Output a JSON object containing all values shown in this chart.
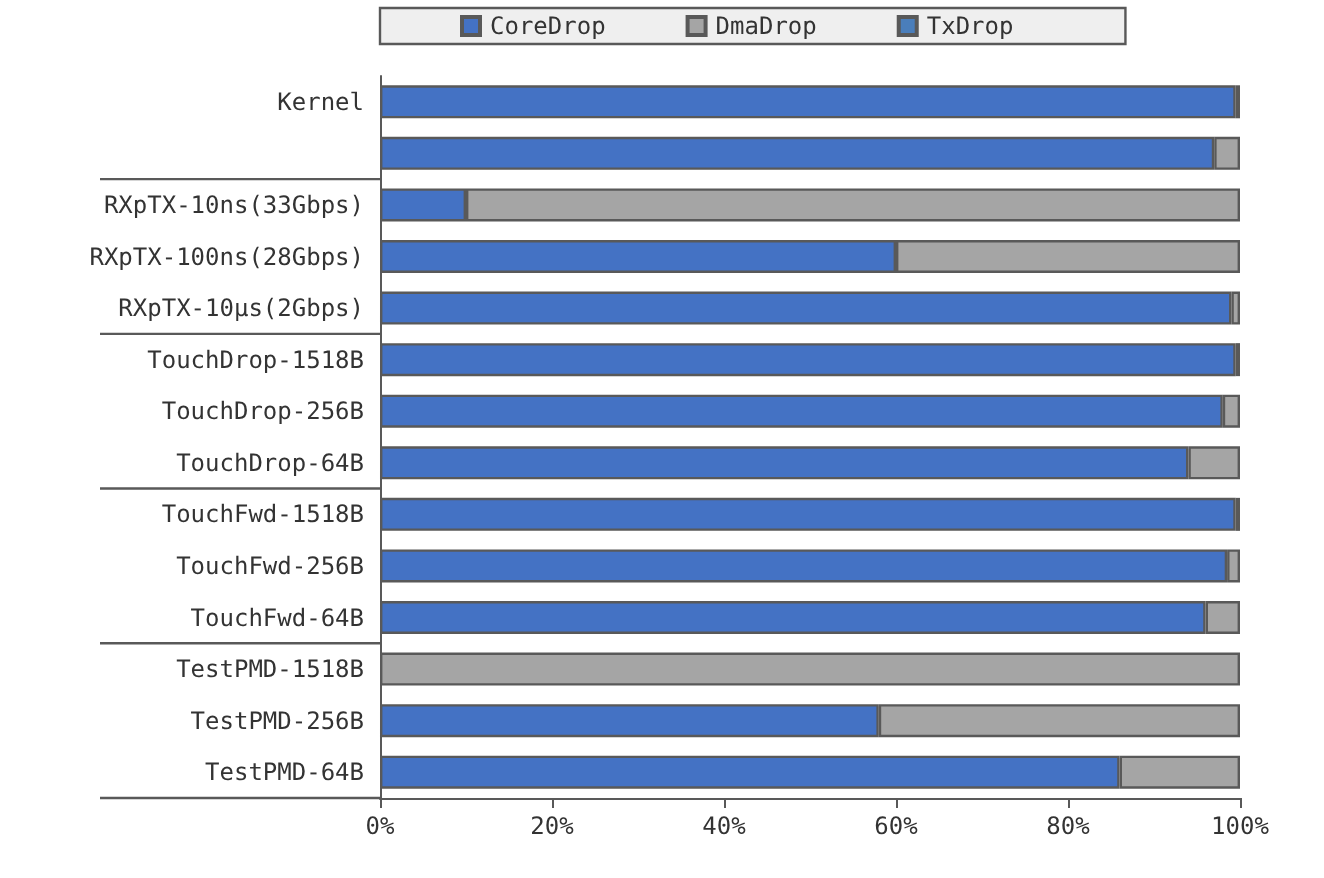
{
  "chart_data": {
    "type": "bar",
    "orientation": "horizontal",
    "stacked": true,
    "categories": [
      "Kernel",
      null,
      "RXpTX-10ns(33Gbps)",
      "RXpTX-100ns(28Gbps)",
      "RXpTX-10µs(2Gbps)",
      "TouchDrop-1518B",
      "TouchDrop-256B",
      "TouchDrop-64B",
      "TouchFwd-1518B",
      "TouchFwd-256B",
      "TouchFwd-64B",
      "TestPMD-1518B",
      "TestPMD-256B",
      "TestPMD-64B"
    ],
    "series": [
      {
        "name": "CoreDrop",
        "color": "#4472c4",
        "values": [
          99.5,
          97,
          10,
          60,
          99,
          99.5,
          98,
          94,
          99.5,
          98.5,
          96,
          0,
          58,
          86
        ]
      },
      {
        "name": "DmaDrop",
        "color": "#a5a5a5",
        "values": [
          0.5,
          3,
          90,
          40,
          1,
          0.5,
          2,
          6,
          0.5,
          1.5,
          4,
          100,
          42,
          14
        ]
      },
      {
        "name": "TxDrop",
        "color": "#4a7ebb",
        "values": [
          0,
          0,
          0,
          0,
          0,
          0,
          0,
          0,
          0,
          0,
          0,
          0,
          0,
          0
        ]
      }
    ],
    "xlim": [
      0,
      100
    ],
    "xticks": [
      {
        "value": 0,
        "label": "0%"
      },
      {
        "value": 20,
        "label": "20%"
      },
      {
        "value": 40,
        "label": "40%"
      },
      {
        "value": 60,
        "label": "60%"
      },
      {
        "value": 80,
        "label": "80%"
      },
      {
        "value": 100,
        "label": "100%"
      }
    ],
    "grid": false,
    "legend": "top"
  }
}
